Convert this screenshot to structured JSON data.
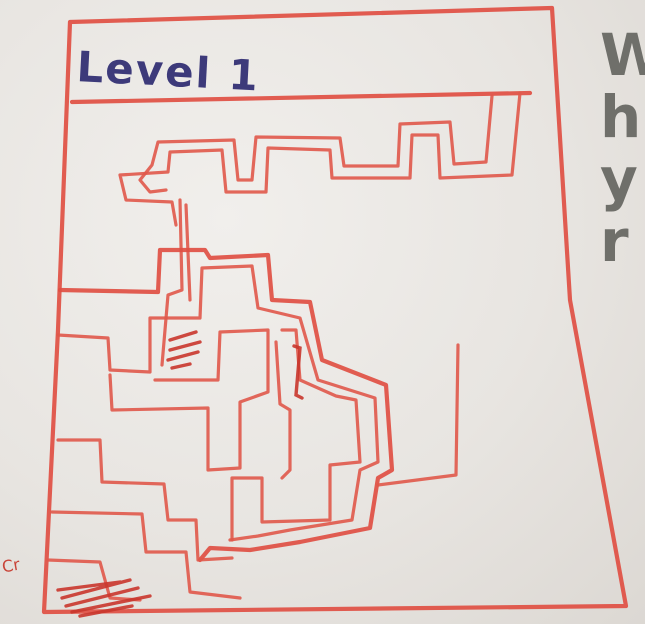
{
  "sketch": {
    "title": "Level 1",
    "side_text": [
      "W",
      "h",
      "y",
      "r"
    ],
    "corner_note": "Cr"
  },
  "colors": {
    "paper": "#e9e7e3",
    "red_marker": "#df4f43",
    "blue_marker": "#3d3a7a",
    "gray_marker": "#6f6f6a"
  }
}
